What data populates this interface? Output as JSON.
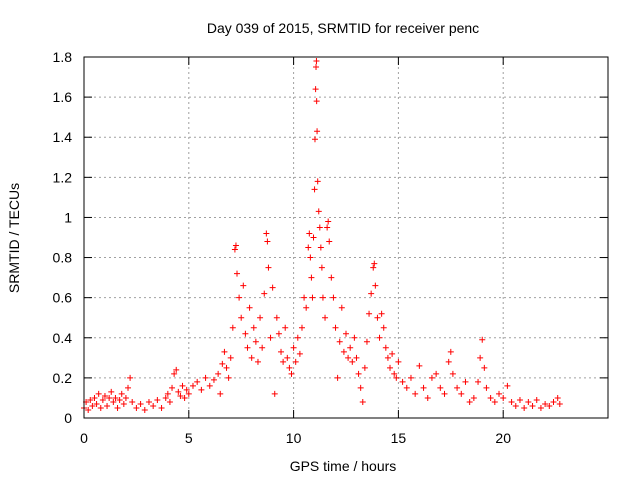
{
  "chart_data": {
    "type": "scatter",
    "title": "Day 039 of 2015, SRMTID for receiver penc",
    "xlabel": "GPS time / hours",
    "ylabel": "SRMTID / TECUs",
    "xlim": [
      0,
      25
    ],
    "ylim": [
      0,
      1.8
    ],
    "xticks": [
      0,
      5,
      10,
      15,
      20
    ],
    "xtick_labels": [
      "0",
      "5",
      "10",
      "15",
      "20"
    ],
    "yticks": [
      0,
      0.2,
      0.4,
      0.6,
      0.8,
      1,
      1.2,
      1.4,
      1.6,
      1.8
    ],
    "ytick_labels": [
      "0",
      "0.2",
      "0.4",
      "0.6",
      "0.8",
      "1",
      "1.2",
      "1.4",
      "1.6",
      "1.8"
    ],
    "grid": true,
    "marker": "+",
    "color": "#ff0000",
    "series": [
      {
        "name": "SRMTID",
        "points": [
          [
            0.0,
            0.05
          ],
          [
            0.1,
            0.08
          ],
          [
            0.2,
            0.04
          ],
          [
            0.3,
            0.09
          ],
          [
            0.4,
            0.06
          ],
          [
            0.5,
            0.1
          ],
          [
            0.6,
            0.07
          ],
          [
            0.7,
            0.12
          ],
          [
            0.8,
            0.05
          ],
          [
            0.9,
            0.09
          ],
          [
            1.0,
            0.11
          ],
          [
            1.1,
            0.06
          ],
          [
            1.2,
            0.1
          ],
          [
            1.3,
            0.13
          ],
          [
            1.4,
            0.08
          ],
          [
            1.5,
            0.1
          ],
          [
            1.6,
            0.05
          ],
          [
            1.7,
            0.09
          ],
          [
            1.8,
            0.12
          ],
          [
            1.9,
            0.07
          ],
          [
            2.0,
            0.1
          ],
          [
            2.1,
            0.15
          ],
          [
            2.2,
            0.2
          ],
          [
            2.3,
            0.08
          ],
          [
            2.5,
            0.05
          ],
          [
            2.7,
            0.07
          ],
          [
            2.9,
            0.04
          ],
          [
            3.1,
            0.08
          ],
          [
            3.3,
            0.06
          ],
          [
            3.5,
            0.09
          ],
          [
            3.7,
            0.05
          ],
          [
            3.9,
            0.1
          ],
          [
            4.0,
            0.12
          ],
          [
            4.1,
            0.08
          ],
          [
            4.2,
            0.15
          ],
          [
            4.3,
            0.22
          ],
          [
            4.4,
            0.24
          ],
          [
            4.5,
            0.13
          ],
          [
            4.6,
            0.11
          ],
          [
            4.7,
            0.16
          ],
          [
            4.8,
            0.1
          ],
          [
            4.9,
            0.14
          ],
          [
            5.0,
            0.12
          ],
          [
            5.2,
            0.16
          ],
          [
            5.4,
            0.18
          ],
          [
            5.6,
            0.14
          ],
          [
            5.8,
            0.2
          ],
          [
            6.0,
            0.16
          ],
          [
            6.2,
            0.19
          ],
          [
            6.4,
            0.22
          ],
          [
            6.5,
            0.12
          ],
          [
            6.6,
            0.27
          ],
          [
            6.7,
            0.33
          ],
          [
            6.8,
            0.25
          ],
          [
            6.9,
            0.2
          ],
          [
            7.0,
            0.3
          ],
          [
            7.1,
            0.45
          ],
          [
            7.2,
            0.84
          ],
          [
            7.25,
            0.86
          ],
          [
            7.3,
            0.72
          ],
          [
            7.4,
            0.6
          ],
          [
            7.5,
            0.5
          ],
          [
            7.6,
            0.66
          ],
          [
            7.7,
            0.42
          ],
          [
            7.8,
            0.35
          ],
          [
            7.9,
            0.55
          ],
          [
            8.0,
            0.3
          ],
          [
            8.1,
            0.45
          ],
          [
            8.2,
            0.38
          ],
          [
            8.3,
            0.28
          ],
          [
            8.4,
            0.5
          ],
          [
            8.5,
            0.35
          ],
          [
            8.6,
            0.62
          ],
          [
            8.7,
            0.92
          ],
          [
            8.75,
            0.88
          ],
          [
            8.8,
            0.75
          ],
          [
            8.9,
            0.4
          ],
          [
            9.0,
            0.65
          ],
          [
            9.1,
            0.12
          ],
          [
            9.2,
            0.5
          ],
          [
            9.3,
            0.42
          ],
          [
            9.4,
            0.33
          ],
          [
            9.5,
            0.28
          ],
          [
            9.6,
            0.45
          ],
          [
            9.7,
            0.3
          ],
          [
            9.8,
            0.25
          ],
          [
            9.9,
            0.22
          ],
          [
            10.0,
            0.35
          ],
          [
            10.1,
            0.28
          ],
          [
            10.2,
            0.4
          ],
          [
            10.3,
            0.32
          ],
          [
            10.4,
            0.45
          ],
          [
            10.5,
            0.6
          ],
          [
            10.6,
            0.55
          ],
          [
            10.7,
            0.85
          ],
          [
            10.75,
            0.92
          ],
          [
            10.8,
            0.8
          ],
          [
            10.85,
            0.7
          ],
          [
            10.9,
            0.6
          ],
          [
            10.95,
            0.9
          ],
          [
            11.0,
            1.14
          ],
          [
            11.02,
            1.39
          ],
          [
            11.05,
            1.64
          ],
          [
            11.07,
            1.75
          ],
          [
            11.09,
            1.78
          ],
          [
            11.1,
            1.58
          ],
          [
            11.12,
            1.43
          ],
          [
            11.15,
            1.18
          ],
          [
            11.2,
            1.03
          ],
          [
            11.25,
            0.95
          ],
          [
            11.3,
            0.85
          ],
          [
            11.35,
            0.75
          ],
          [
            11.4,
            0.6
          ],
          [
            11.5,
            0.5
          ],
          [
            11.6,
            0.95
          ],
          [
            11.65,
            0.98
          ],
          [
            11.7,
            0.88
          ],
          [
            11.8,
            0.7
          ],
          [
            11.9,
            0.6
          ],
          [
            12.0,
            0.45
          ],
          [
            12.1,
            0.2
          ],
          [
            12.2,
            0.38
          ],
          [
            12.3,
            0.55
          ],
          [
            12.4,
            0.33
          ],
          [
            12.5,
            0.42
          ],
          [
            12.6,
            0.3
          ],
          [
            12.7,
            0.35
          ],
          [
            12.8,
            0.28
          ],
          [
            12.9,
            0.4
          ],
          [
            13.0,
            0.3
          ],
          [
            13.1,
            0.22
          ],
          [
            13.2,
            0.15
          ],
          [
            13.3,
            0.08
          ],
          [
            13.4,
            0.25
          ],
          [
            13.5,
            0.38
          ],
          [
            13.6,
            0.52
          ],
          [
            13.7,
            0.62
          ],
          [
            13.8,
            0.75
          ],
          [
            13.85,
            0.77
          ],
          [
            13.9,
            0.66
          ],
          [
            14.0,
            0.5
          ],
          [
            14.1,
            0.4
          ],
          [
            14.2,
            0.52
          ],
          [
            14.3,
            0.45
          ],
          [
            14.4,
            0.35
          ],
          [
            14.5,
            0.3
          ],
          [
            14.6,
            0.25
          ],
          [
            14.7,
            0.32
          ],
          [
            14.8,
            0.22
          ],
          [
            14.9,
            0.2
          ],
          [
            15.0,
            0.28
          ],
          [
            15.2,
            0.18
          ],
          [
            15.4,
            0.15
          ],
          [
            15.6,
            0.2
          ],
          [
            15.8,
            0.12
          ],
          [
            16.0,
            0.26
          ],
          [
            16.2,
            0.15
          ],
          [
            16.4,
            0.1
          ],
          [
            16.6,
            0.2
          ],
          [
            16.8,
            0.22
          ],
          [
            17.0,
            0.15
          ],
          [
            17.2,
            0.12
          ],
          [
            17.4,
            0.28
          ],
          [
            17.5,
            0.33
          ],
          [
            17.6,
            0.22
          ],
          [
            17.8,
            0.15
          ],
          [
            18.0,
            0.12
          ],
          [
            18.2,
            0.18
          ],
          [
            18.4,
            0.08
          ],
          [
            18.6,
            0.1
          ],
          [
            18.8,
            0.18
          ],
          [
            18.9,
            0.3
          ],
          [
            19.0,
            0.39
          ],
          [
            19.1,
            0.25
          ],
          [
            19.2,
            0.15
          ],
          [
            19.4,
            0.1
          ],
          [
            19.6,
            0.08
          ],
          [
            19.8,
            0.12
          ],
          [
            20.0,
            0.1
          ],
          [
            20.2,
            0.16
          ],
          [
            20.4,
            0.08
          ],
          [
            20.6,
            0.06
          ],
          [
            20.8,
            0.09
          ],
          [
            21.0,
            0.05
          ],
          [
            21.2,
            0.08
          ],
          [
            21.4,
            0.06
          ],
          [
            21.6,
            0.09
          ],
          [
            21.8,
            0.05
          ],
          [
            22.0,
            0.07
          ],
          [
            22.2,
            0.06
          ],
          [
            22.4,
            0.08
          ],
          [
            22.6,
            0.1
          ],
          [
            22.7,
            0.07
          ]
        ]
      }
    ]
  }
}
